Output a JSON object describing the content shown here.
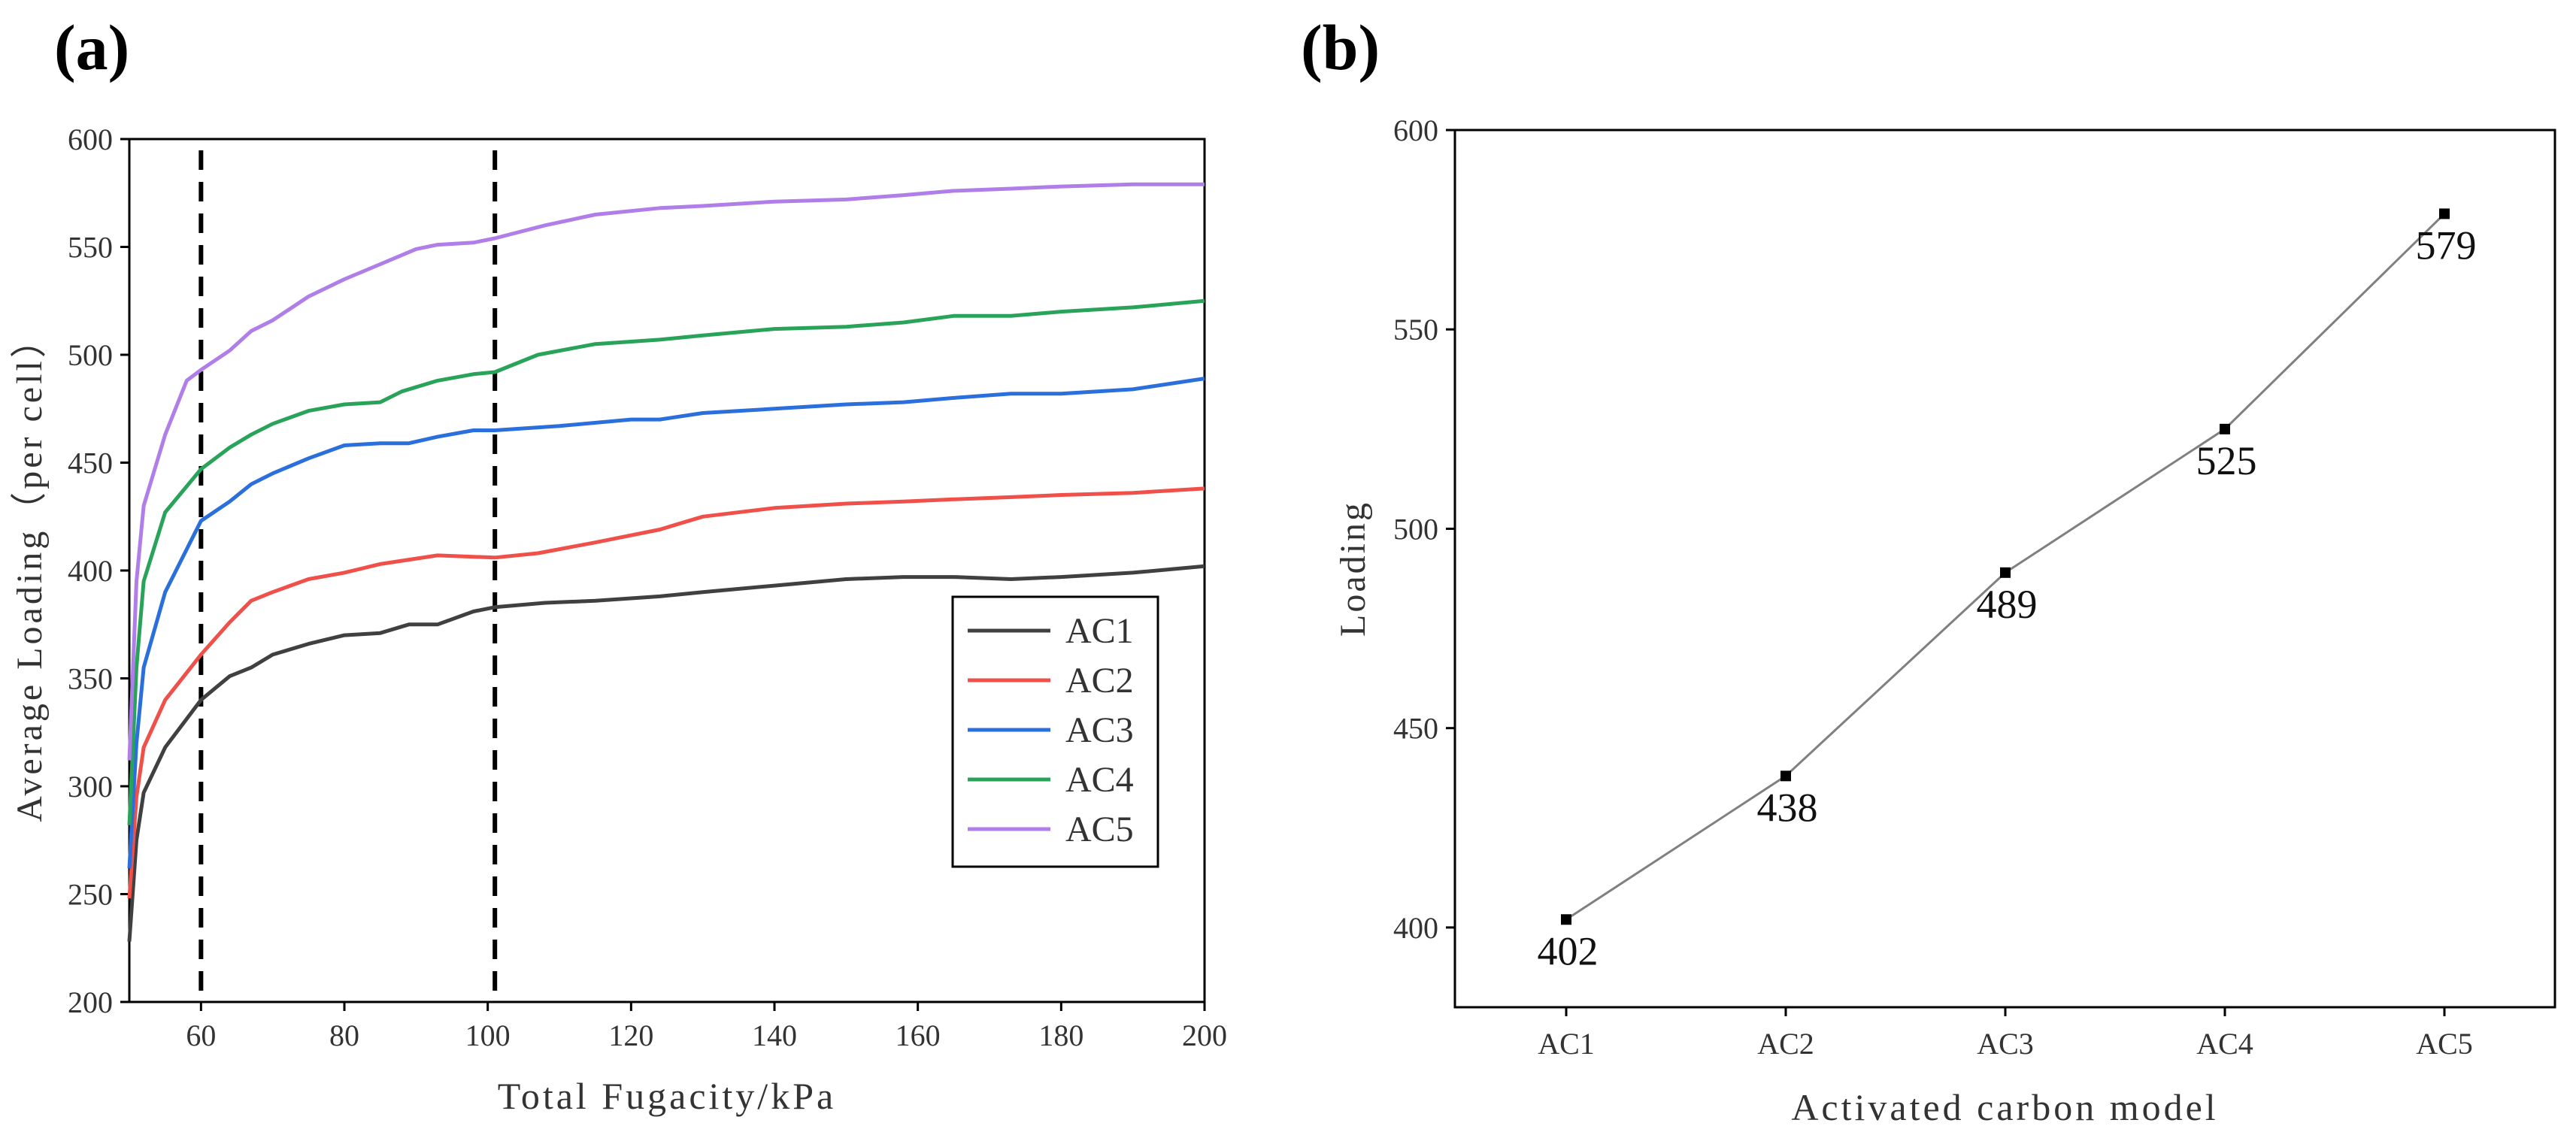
{
  "chart_data": [
    {
      "type": "line",
      "panel_label": "(a)",
      "title": "",
      "xlabel": "Total Fugacity/kPa",
      "ylabel": "Average Loading（per cell）",
      "xlim": [
        50,
        200
      ],
      "ylim": [
        200,
        600
      ],
      "xticks": [
        60,
        80,
        100,
        120,
        140,
        160,
        180,
        200
      ],
      "yticks": [
        200,
        250,
        300,
        350,
        400,
        450,
        500,
        550,
        600
      ],
      "grid": false,
      "legend_position": "lower-right",
      "vlines": [
        60,
        101
      ],
      "series": [
        {
          "name": "AC1",
          "color": "#404040",
          "x": [
            50,
            51,
            52,
            55,
            60,
            64,
            67,
            70,
            75,
            80,
            85,
            89,
            93,
            98,
            101,
            108,
            115,
            124,
            130,
            140,
            150,
            158,
            165,
            173,
            180,
            190,
            200
          ],
          "y": [
            228,
            275,
            297,
            318,
            340,
            351,
            355,
            361,
            366,
            370,
            371,
            375,
            375,
            381,
            383,
            385,
            386,
            388,
            390,
            393,
            396,
            397,
            397,
            396,
            397,
            399,
            402
          ]
        },
        {
          "name": "AC2",
          "color": "#f0504a",
          "x": [
            50,
            51,
            52,
            55,
            60,
            64,
            67,
            70,
            75,
            80,
            85,
            93,
            101,
            107,
            115,
            124,
            130,
            140,
            150,
            158,
            165,
            173,
            180,
            190,
            200
          ],
          "y": [
            248,
            295,
            318,
            340,
            361,
            376,
            386,
            390,
            396,
            399,
            403,
            407,
            406,
            408,
            413,
            419,
            425,
            429,
            431,
            432,
            433,
            434,
            435,
            436,
            438
          ]
        },
        {
          "name": "AC3",
          "color": "#2a6fdb",
          "x": [
            50,
            51,
            52,
            55,
            60,
            64,
            67,
            70,
            75,
            80,
            85,
            89,
            93,
            98,
            101,
            110,
            120,
            124,
            130,
            140,
            150,
            158,
            165,
            173,
            180,
            190,
            200
          ],
          "y": [
            262,
            320,
            355,
            390,
            423,
            432,
            440,
            445,
            452,
            458,
            459,
            459,
            462,
            465,
            465,
            467,
            470,
            470,
            473,
            475,
            477,
            478,
            480,
            482,
            482,
            484,
            489
          ]
        },
        {
          "name": "AC4",
          "color": "#2aa35a",
          "x": [
            50,
            51,
            52,
            55,
            60,
            64,
            67,
            70,
            75,
            80,
            85,
            88,
            93,
            98,
            101,
            107,
            115,
            124,
            130,
            140,
            150,
            158,
            165,
            173,
            180,
            190,
            200
          ],
          "y": [
            282,
            355,
            395,
            427,
            447,
            457,
            463,
            468,
            474,
            477,
            478,
            483,
            488,
            491,
            492,
            500,
            505,
            507,
            509,
            512,
            513,
            515,
            518,
            518,
            520,
            522,
            525
          ]
        },
        {
          "name": "AC5",
          "color": "#b07ee8",
          "x": [
            50,
            51,
            52,
            55,
            58,
            60,
            64,
            67,
            70,
            75,
            80,
            85,
            90,
            93,
            98,
            101,
            108,
            115,
            124,
            130,
            140,
            150,
            158,
            165,
            173,
            180,
            190,
            200
          ],
          "y": [
            312,
            395,
            430,
            463,
            488,
            493,
            502,
            511,
            516,
            527,
            535,
            542,
            549,
            551,
            552,
            554,
            560,
            565,
            568,
            569,
            571,
            572,
            574,
            576,
            577,
            578,
            579,
            579
          ]
        }
      ]
    },
    {
      "type": "line",
      "panel_label": "(b)",
      "title": "",
      "xlabel": "Activated carbon model",
      "ylabel": "Loading",
      "categories": [
        "AC1",
        "AC2",
        "AC3",
        "AC4",
        "AC5"
      ],
      "values": [
        402,
        438,
        489,
        525,
        579
      ],
      "ylim": [
        380,
        600
      ],
      "yticks": [
        400,
        450,
        500,
        550,
        600
      ],
      "grid": false,
      "line_color": "#808080",
      "marker_color": "#000000"
    }
  ]
}
